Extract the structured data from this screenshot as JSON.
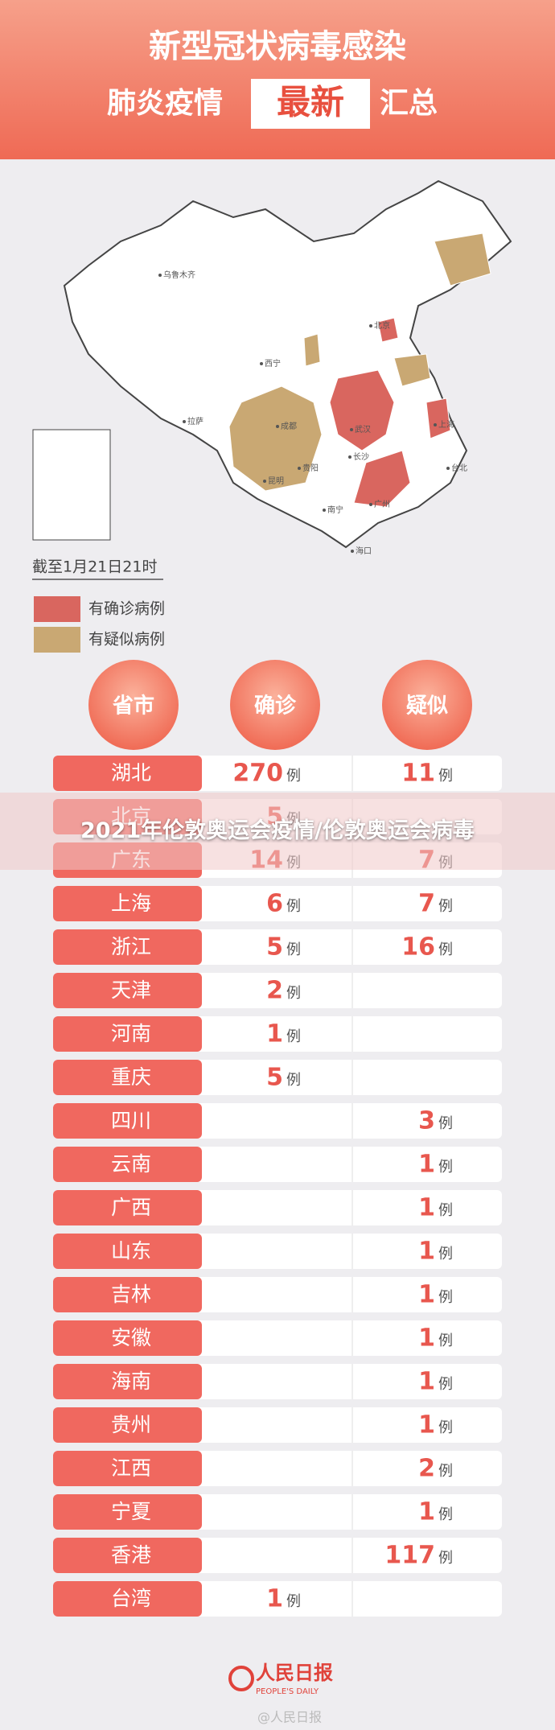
{
  "header": {
    "title": "新型冠状病毒感染",
    "subtitle_left": "肺炎疫情",
    "subtitle_highlight": "最新",
    "subtitle_right": "汇总"
  },
  "map": {
    "labels": [
      "乌鲁木齐",
      "拉萨",
      "西宁",
      "成都",
      "昆明",
      "贵阳",
      "武汉",
      "长沙",
      "广州",
      "南宁",
      "海口",
      "北京",
      "上海",
      "台北"
    ]
  },
  "timestamp": "截至1月21日21时",
  "legend": [
    {
      "label": "有确诊病例",
      "color": "#d9665f"
    },
    {
      "label": "有疑似病例",
      "color": "#c9a873"
    }
  ],
  "table": {
    "columns": [
      "省市",
      "确诊",
      "疑似"
    ],
    "unit": "例",
    "rows": [
      [
        "湖北",
        270,
        11
      ],
      [
        "北京",
        5,
        null
      ],
      [
        "广东",
        14,
        7
      ],
      [
        "上海",
        6,
        7
      ],
      [
        "浙江",
        5,
        16
      ],
      [
        "天津",
        2,
        null
      ],
      [
        "河南",
        1,
        null
      ],
      [
        "重庆",
        5,
        null
      ],
      [
        "四川",
        null,
        3
      ],
      [
        "云南",
        null,
        1
      ],
      [
        "广西",
        null,
        1
      ],
      [
        "山东",
        null,
        1
      ],
      [
        "吉林",
        null,
        1
      ],
      [
        "安徽",
        null,
        1
      ],
      [
        "海南",
        null,
        1
      ],
      [
        "贵州",
        null,
        1
      ],
      [
        "江西",
        null,
        2
      ],
      [
        "宁夏",
        null,
        1
      ],
      [
        "香港",
        null,
        117
      ],
      [
        "台湾",
        1,
        null
      ]
    ]
  },
  "footer": {
    "logo": "人民日报",
    "logo_en": "PEOPLE'S DAILY",
    "watermark": "@人民日报"
  },
  "overlay": "2021年伦敦奥运会疫情/伦敦奥运会病毒"
}
